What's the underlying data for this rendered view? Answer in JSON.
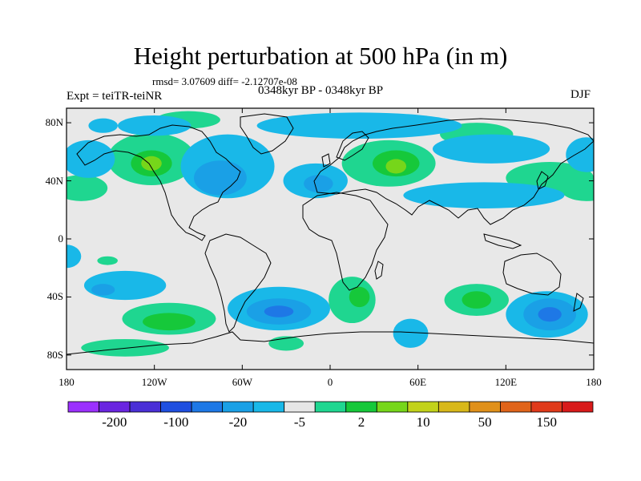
{
  "chart_data": {
    "type": "heatmap",
    "title": "Height perturbation at 500 hPa (in m)",
    "stats_line": "rmsd= 3.07609  diff= -2.12707e-08",
    "period_line": "0348kyr BP - 0348kyr BP",
    "experiment_line": "Expt = teiTR-teiNR",
    "season": "DJF",
    "x_ticks": [
      "180",
      "120W",
      "60W",
      "0",
      "60E",
      "120E",
      "180"
    ],
    "x_tick_values": [
      -180,
      -120,
      -60,
      0,
      60,
      120,
      180
    ],
    "y_ticks": [
      "80N",
      "40N",
      "0",
      "40S",
      "80S"
    ],
    "y_tick_values": [
      80,
      40,
      0,
      -40,
      -80
    ],
    "xlim": [
      -180,
      180
    ],
    "ylim": [
      -90,
      90
    ],
    "colorbar_labels": [
      "-200",
      "-100",
      "-20",
      "-5",
      "2",
      "10",
      "50",
      "150"
    ],
    "colorbar_colors": [
      "#9b30ff",
      "#6a25e0",
      "#4a2fd6",
      "#1f4fe0",
      "#1e78e6",
      "#1aa0e6",
      "#19b8e8",
      "#e6e6e6",
      "#1fd690",
      "#16c83a",
      "#76d61a",
      "#c2d21a",
      "#d8b81a",
      "#e0901a",
      "#e0641a",
      "#e03a1a",
      "#d81a1a"
    ],
    "anomaly_regions": [
      {
        "lon": -122,
        "lat": 55,
        "rx": 30,
        "ry": 18,
        "level": 1
      },
      {
        "lon": -122,
        "lat": 52,
        "rx": 14,
        "ry": 9,
        "level": 2
      },
      {
        "lon": -122,
        "lat": 52,
        "rx": 7,
        "ry": 5,
        "level": 3
      },
      {
        "lon": -170,
        "lat": 35,
        "rx": 18,
        "ry": 9,
        "level": 1
      },
      {
        "lon": 175,
        "lat": 35,
        "rx": 18,
        "ry": 9,
        "level": 1
      },
      {
        "lon": 40,
        "lat": 52,
        "rx": 32,
        "ry": 16,
        "level": 1
      },
      {
        "lon": 45,
        "lat": 52,
        "rx": 16,
        "ry": 9,
        "level": 2
      },
      {
        "lon": 45,
        "lat": 50,
        "rx": 7,
        "ry": 5,
        "level": 3
      },
      {
        "lon": 100,
        "lat": 72,
        "rx": 25,
        "ry": 8,
        "level": 1
      },
      {
        "lon": 150,
        "lat": 42,
        "rx": 30,
        "ry": 11,
        "level": 1
      },
      {
        "lon": -110,
        "lat": -55,
        "rx": 32,
        "ry": 11,
        "level": 1
      },
      {
        "lon": -110,
        "lat": -57,
        "rx": 18,
        "ry": 6,
        "level": 2
      },
      {
        "lon": -140,
        "lat": -75,
        "rx": 30,
        "ry": 6,
        "level": 1
      },
      {
        "lon": 15,
        "lat": -42,
        "rx": 16,
        "ry": 16,
        "level": 1
      },
      {
        "lon": 20,
        "lat": -40,
        "rx": 7,
        "ry": 7,
        "level": 2
      },
      {
        "lon": 100,
        "lat": -42,
        "rx": 22,
        "ry": 11,
        "level": 1
      },
      {
        "lon": 100,
        "lat": -42,
        "rx": 10,
        "ry": 6,
        "level": 2
      },
      {
        "lon": -152,
        "lat": -15,
        "rx": 7,
        "ry": 3,
        "level": 1
      },
      {
        "lon": -97,
        "lat": 82,
        "rx": 22,
        "ry": 6,
        "level": 1
      },
      {
        "lon": -30,
        "lat": -72,
        "rx": 12,
        "ry": 5,
        "level": 1
      },
      {
        "lon": -155,
        "lat": 78,
        "rx": 10,
        "ry": 5,
        "level": -1
      },
      {
        "lon": -120,
        "lat": 78,
        "rx": 25,
        "ry": 7,
        "level": -1
      },
      {
        "lon": -165,
        "lat": 55,
        "rx": 18,
        "ry": 13,
        "level": -1
      },
      {
        "lon": -70,
        "lat": 50,
        "rx": 32,
        "ry": 22,
        "level": -1
      },
      {
        "lon": -75,
        "lat": 42,
        "rx": 18,
        "ry": 12,
        "level": -2
      },
      {
        "lon": -10,
        "lat": 40,
        "rx": 22,
        "ry": 12,
        "level": -1
      },
      {
        "lon": -8,
        "lat": 38,
        "rx": 10,
        "ry": 6,
        "level": -2
      },
      {
        "lon": 20,
        "lat": 78,
        "rx": 70,
        "ry": 9,
        "level": -1
      },
      {
        "lon": 110,
        "lat": 62,
        "rx": 40,
        "ry": 10,
        "level": -1
      },
      {
        "lon": 105,
        "lat": 30,
        "rx": 55,
        "ry": 9,
        "level": -1
      },
      {
        "lon": 175,
        "lat": 58,
        "rx": 14,
        "ry": 12,
        "level": -1
      },
      {
        "lon": -35,
        "lat": -48,
        "rx": 35,
        "ry": 15,
        "level": -1
      },
      {
        "lon": -35,
        "lat": -50,
        "rx": 22,
        "ry": 9,
        "level": -2
      },
      {
        "lon": -35,
        "lat": -50,
        "rx": 10,
        "ry": 4,
        "level": -3
      },
      {
        "lon": -140,
        "lat": -32,
        "rx": 28,
        "ry": 10,
        "level": -1
      },
      {
        "lon": -155,
        "lat": -35,
        "rx": 8,
        "ry": 4,
        "level": -2
      },
      {
        "lon": 148,
        "lat": -52,
        "rx": 28,
        "ry": 16,
        "level": -1
      },
      {
        "lon": 150,
        "lat": -52,
        "rx": 18,
        "ry": 11,
        "level": -2
      },
      {
        "lon": 150,
        "lat": -52,
        "rx": 8,
        "ry": 5,
        "level": -3
      },
      {
        "lon": 55,
        "lat": -65,
        "rx": 12,
        "ry": 10,
        "level": -1
      },
      {
        "lon": -180,
        "lat": -12,
        "rx": 10,
        "ry": 8,
        "level": -1
      }
    ]
  }
}
